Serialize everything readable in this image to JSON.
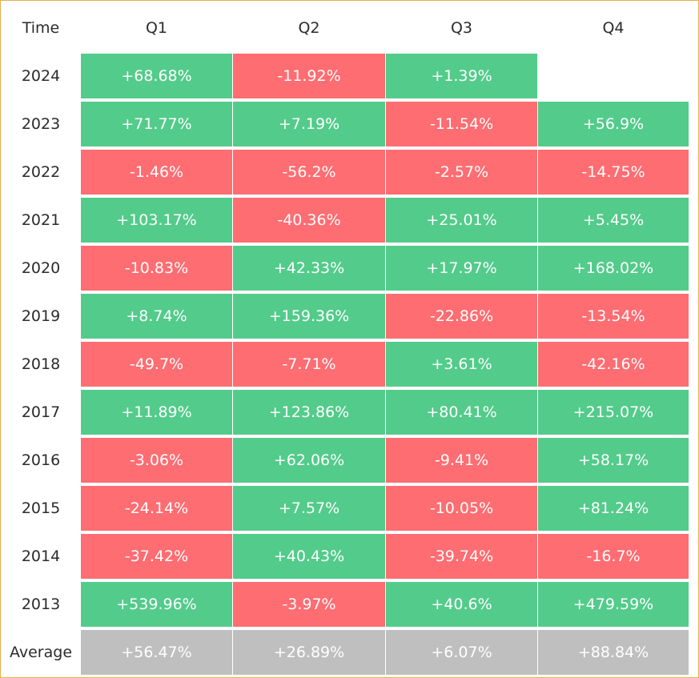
{
  "chart_data": {
    "type": "table",
    "corner_label": "Time",
    "columns": [
      "Q1",
      "Q2",
      "Q3",
      "Q4"
    ],
    "rows": [
      {
        "label": "2024",
        "values": [
          "+68.68%",
          "-11.92%",
          "+1.39%",
          ""
        ]
      },
      {
        "label": "2023",
        "values": [
          "+71.77%",
          "+7.19%",
          "-11.54%",
          "+56.9%"
        ]
      },
      {
        "label": "2022",
        "values": [
          "-1.46%",
          "-56.2%",
          "-2.57%",
          "-14.75%"
        ]
      },
      {
        "label": "2021",
        "values": [
          "+103.17%",
          "-40.36%",
          "+25.01%",
          "+5.45%"
        ]
      },
      {
        "label": "2020",
        "values": [
          "-10.83%",
          "+42.33%",
          "+17.97%",
          "+168.02%"
        ]
      },
      {
        "label": "2019",
        "values": [
          "+8.74%",
          "+159.36%",
          "-22.86%",
          "-13.54%"
        ]
      },
      {
        "label": "2018",
        "values": [
          "-49.7%",
          "-7.71%",
          "+3.61%",
          "-42.16%"
        ]
      },
      {
        "label": "2017",
        "values": [
          "+11.89%",
          "+123.86%",
          "+80.41%",
          "+215.07%"
        ]
      },
      {
        "label": "2016",
        "values": [
          "-3.06%",
          "+62.06%",
          "-9.41%",
          "+58.17%"
        ]
      },
      {
        "label": "2015",
        "values": [
          "-24.14%",
          "+7.57%",
          "-10.05%",
          "+81.24%"
        ]
      },
      {
        "label": "2014",
        "values": [
          "-37.42%",
          "+40.43%",
          "-39.74%",
          "-16.7%"
        ]
      },
      {
        "label": "2013",
        "values": [
          "+539.96%",
          "-3.97%",
          "+40.6%",
          "+479.59%"
        ]
      }
    ],
    "average": {
      "label": "Average",
      "values": [
        "+56.47%",
        "+26.89%",
        "+6.07%",
        "+88.84%"
      ]
    },
    "colors": {
      "positive": "#53cb8b",
      "negative": "#fd6d72",
      "average": "#bfbfbf",
      "border": "#e8b04a",
      "text": "#ffffff",
      "label_text": "#2b2b2b"
    }
  }
}
